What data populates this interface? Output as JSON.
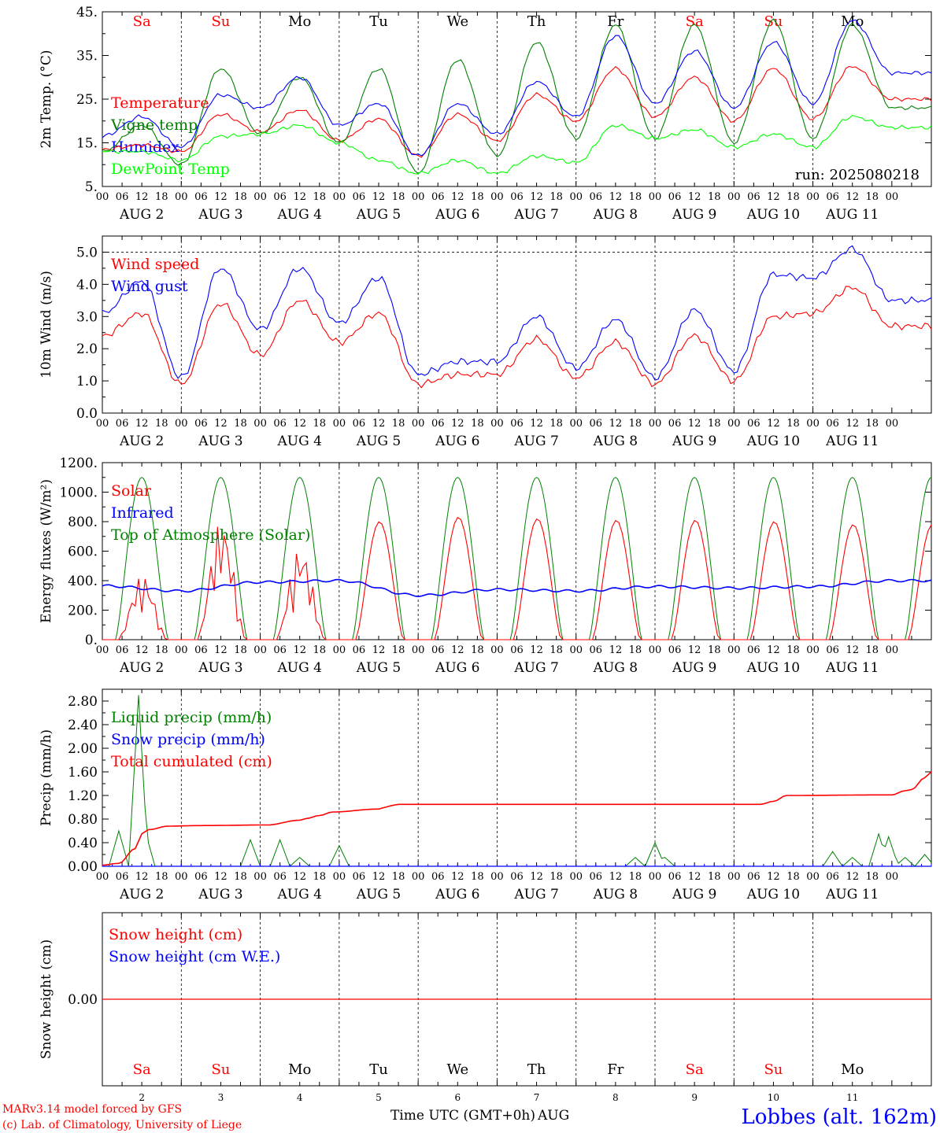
{
  "chart_data": [
    {
      "type": "line",
      "ylabel": "2m Temp. (°C)",
      "ylim": [
        5,
        45
      ],
      "yticks": [
        "5.",
        "15.",
        "25.",
        "35.",
        "45."
      ],
      "grid": "dashed vertical at 00 UTC",
      "legend_placement": "top-left",
      "annotation": "run: 2025080218",
      "x": [
        0,
        12,
        24,
        36,
        48,
        60,
        72,
        84,
        96,
        108,
        120,
        132,
        144,
        156,
        168,
        180,
        192,
        204,
        216,
        228,
        240
      ],
      "series": [
        {
          "name": "Temperature",
          "color": "#ff0000",
          "values": [
            13.5,
            14.5,
            13,
            21.5,
            17.5,
            22.5,
            15.5,
            20.5,
            12,
            21.5,
            15.5,
            26,
            20,
            32,
            21,
            30,
            20,
            32,
            20.5,
            32.5,
            25
          ]
        },
        {
          "name": "Vigne temp",
          "color": "#008000",
          "values": [
            13,
            19,
            10,
            32,
            17,
            30,
            15,
            32,
            8,
            34,
            12,
            38,
            16,
            42,
            16,
            42,
            15,
            43,
            16,
            42,
            23
          ]
        },
        {
          "name": "Humidex",
          "color": "#0000ff",
          "values": [
            16.5,
            21,
            14,
            26,
            23,
            30,
            19,
            24,
            12,
            24,
            17,
            29,
            21,
            39.5,
            24,
            36,
            23,
            38,
            24,
            43,
            31
          ]
        },
        {
          "name": "DewPoint Temp",
          "color": "#00ff00",
          "values": [
            13,
            13,
            11,
            16.5,
            17,
            19,
            15,
            11,
            8,
            11,
            8,
            12,
            10.5,
            19,
            16,
            18,
            14,
            17,
            14,
            21,
            18.5
          ]
        }
      ]
    },
    {
      "type": "line",
      "ylabel": "10m Wind (m/s)",
      "ylim": [
        0,
        5.5
      ],
      "yticks": [
        "0.0",
        "1.0",
        "2.0",
        "3.0",
        "4.0",
        "5.0"
      ],
      "legend_placement": "top-left",
      "x": [
        0,
        12,
        24,
        36,
        48,
        60,
        72,
        84,
        96,
        108,
        120,
        132,
        144,
        156,
        168,
        180,
        192,
        204,
        216,
        228,
        240
      ],
      "series": [
        {
          "name": "Wind speed",
          "color": "#ff0000",
          "values": [
            2.4,
            3.1,
            0.9,
            3.4,
            1.8,
            3.5,
            2.2,
            3.1,
            0.9,
            1.2,
            1.2,
            2.3,
            1.1,
            2.2,
            0.9,
            2.4,
            1.0,
            3.0,
            3.1,
            3.9,
            2.7
          ]
        },
        {
          "name": "Wind gust",
          "color": "#0000ff",
          "values": [
            3.1,
            4.1,
            1.1,
            4.5,
            2.6,
            4.5,
            2.8,
            4.2,
            1.2,
            1.6,
            1.6,
            3.0,
            1.4,
            2.9,
            1.1,
            3.2,
            1.3,
            4.3,
            4.2,
            5.1,
            3.5
          ]
        }
      ]
    },
    {
      "type": "line",
      "ylabel": "Energy fluxes (W/m²)",
      "ylim": [
        0,
        1200
      ],
      "yticks": [
        "0.",
        "200.",
        "400.",
        "600.",
        "800.",
        "1000.",
        "1200."
      ],
      "legend_placement": "top-left",
      "solar_peak_by_day": [
        440,
        810,
        630,
        800,
        830,
        820,
        810,
        810,
        800,
        780
      ],
      "series": [
        {
          "name": "Solar",
          "color": "#ff0000"
        },
        {
          "name": "Infrared",
          "color": "#0000ff",
          "values_by_day": [
            365,
            330,
            390,
            400,
            300,
            340,
            330,
            360,
            350,
            360,
            400
          ]
        },
        {
          "name": "Top of Atmosphere (Solar)",
          "color": "#008000",
          "peak_values": 1100
        }
      ]
    },
    {
      "type": "line",
      "ylabel": "Precip (mm/h)",
      "ylim": [
        0,
        3.0
      ],
      "yticks": [
        "0.00",
        "0.40",
        "0.80",
        "1.20",
        "1.60",
        "2.00",
        "2.40",
        "2.80"
      ],
      "legend_placement": "top-left",
      "series": [
        {
          "name": "Liquid precip (mm/h)",
          "color": "#008000",
          "events": [
            [
              5,
              0.6
            ],
            [
              11,
              2.9
            ],
            [
              13,
              0.6
            ],
            [
              45,
              0.45
            ],
            [
              54,
              0.45
            ],
            [
              60,
              0.15
            ],
            [
              72,
              0.35
            ],
            [
              162,
              0.15
            ],
            [
              168,
              0.4
            ],
            [
              171,
              0.15
            ],
            [
              222,
              0.25
            ],
            [
              228,
              0.15
            ],
            [
              236,
              0.55
            ],
            [
              239,
              0.5
            ],
            [
              244,
              0.15
            ],
            [
              250,
              0.2
            ]
          ]
        },
        {
          "name": "Snow precip (mm/h)",
          "color": "#0000ff",
          "values": "0.00 throughout"
        },
        {
          "name": "Total cumulated (cm)",
          "color": "#ff0000",
          "x": [
            0,
            5,
            10,
            12,
            14,
            20,
            30,
            50,
            60,
            62,
            66,
            70,
            84,
            86,
            88,
            90,
            200,
            204,
            208,
            240,
            244,
            246,
            250,
            252
          ],
          "values": [
            0.02,
            0.05,
            0.3,
            0.55,
            0.62,
            0.68,
            0.69,
            0.7,
            0.78,
            0.81,
            0.86,
            0.92,
            0.97,
            1.0,
            1.03,
            1.05,
            1.05,
            1.1,
            1.2,
            1.21,
            1.28,
            1.3,
            1.5,
            1.6
          ]
        }
      ]
    },
    {
      "type": "line",
      "ylabel": "Snow height (cm)",
      "yticks": [
        "0.00"
      ],
      "legend_placement": "top-left",
      "series": [
        {
          "name": "Snow height (cm)",
          "color": "#ff0000",
          "values": "0.00 throughout"
        },
        {
          "name": "Snow height (cm W.E.)",
          "color": "#0000ff"
        }
      ]
    }
  ],
  "axis": {
    "hour_labels": [
      "00",
      "06",
      "12",
      "18"
    ],
    "last_hour_label": "00",
    "dates": [
      "AUG  2",
      "AUG  3",
      "AUG  4",
      "AUG  5",
      "AUG  6",
      "AUG  7",
      "AUG  8",
      "AUG  9",
      "AUG 10",
      "AUG 11"
    ],
    "weekdays": [
      "Sa",
      "Su",
      "Mo",
      "Tu",
      "We",
      "Th",
      "Fr",
      "Sa",
      "Su",
      "Mo"
    ],
    "weekday_colors": [
      "#ff0000",
      "#ff0000",
      "#000000",
      "#000000",
      "#000000",
      "#000000",
      "#000000",
      "#ff0000",
      "#ff0000",
      "#000000"
    ],
    "day_numbers": [
      "2",
      "3",
      "4",
      "5",
      "6",
      "7",
      "8",
      "9",
      "10",
      "11"
    ],
    "xlabel": "Time UTC (GMT+0h)",
    "xlabel_month": "AUG"
  },
  "footer": {
    "credit1": "MARv3.14 model forced by GFS",
    "credit2": "(c) Lab. of Climatology, University of Liege",
    "station": "Lobbes (alt. 162m)",
    "station_color": "#0000ff",
    "credit_color": "#ff0000"
  }
}
